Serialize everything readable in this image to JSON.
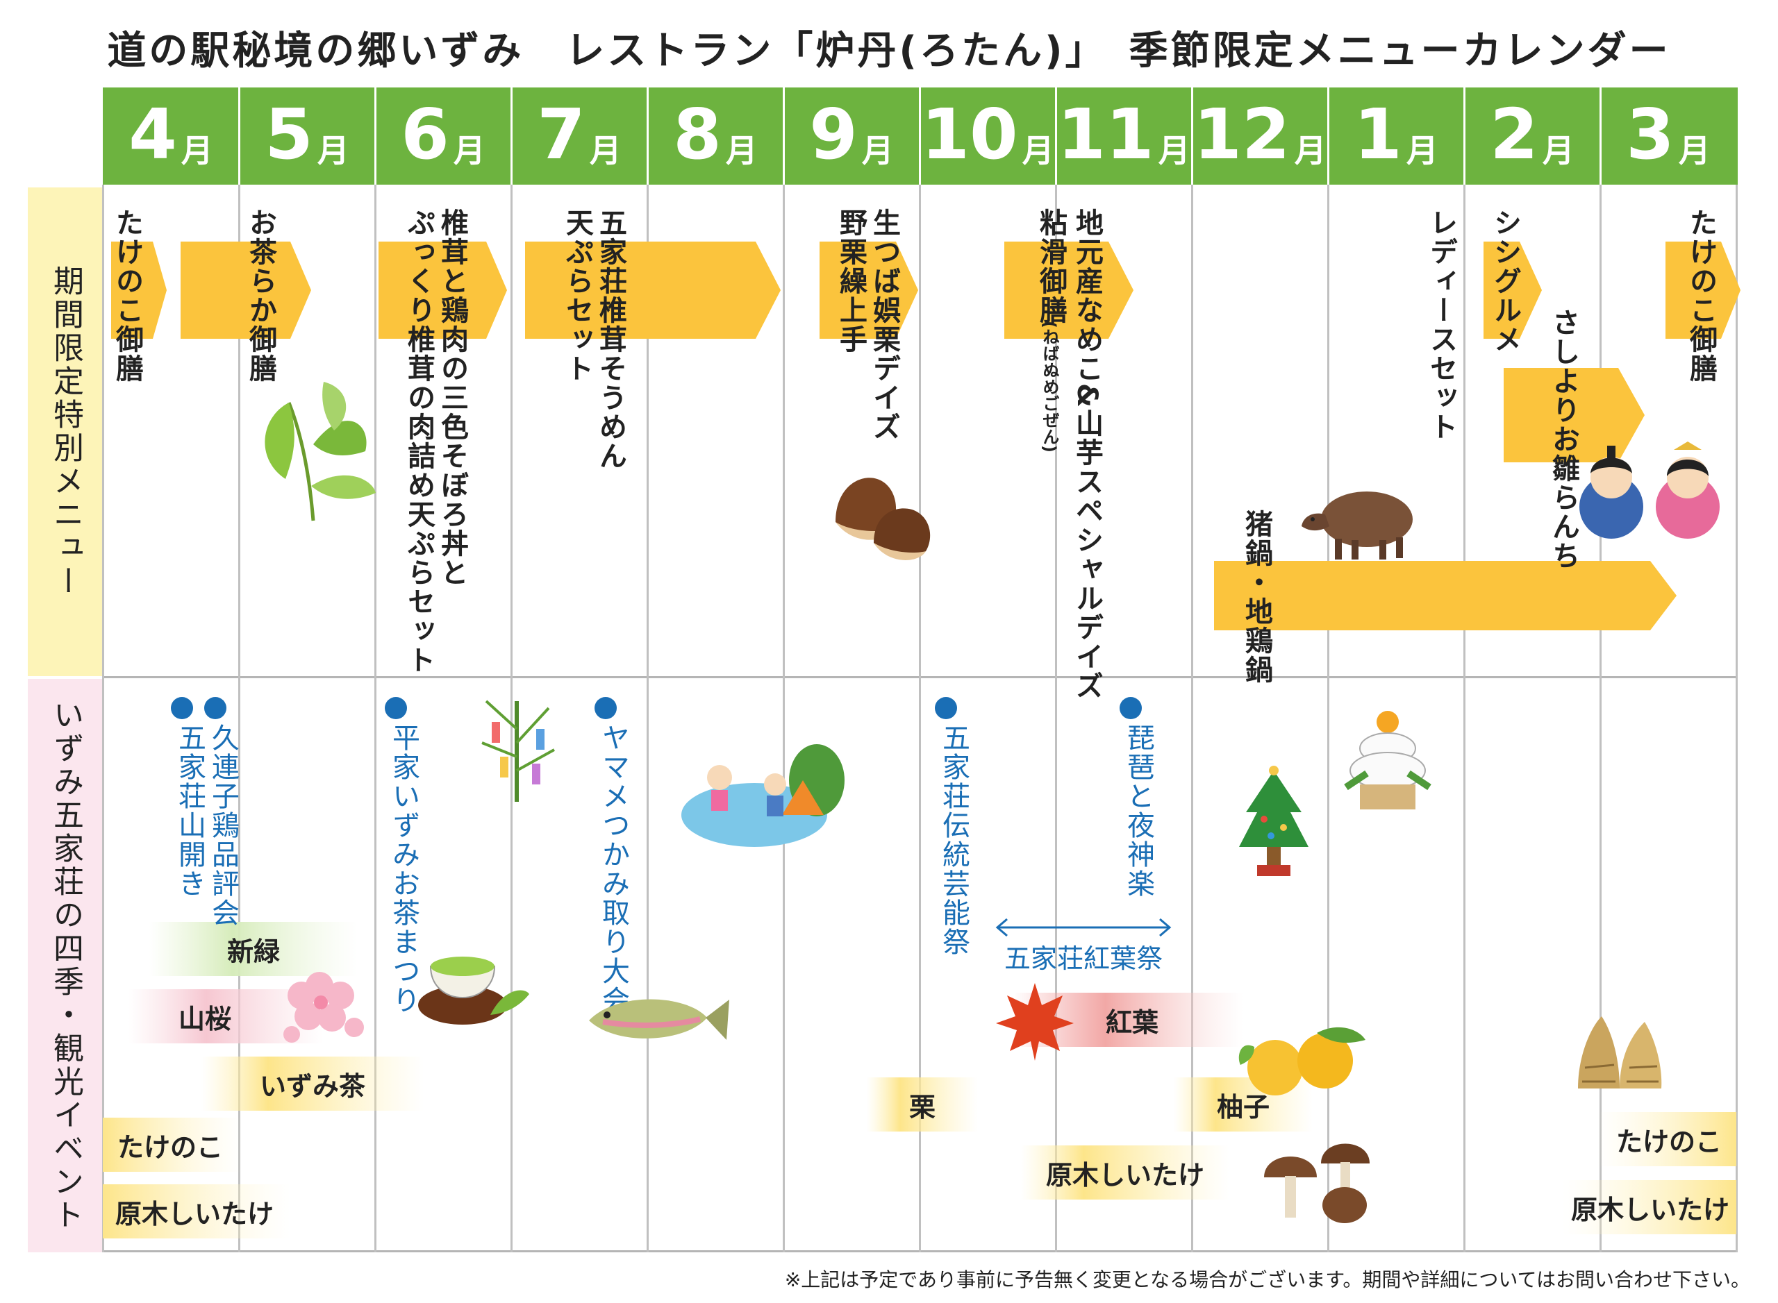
{
  "title": "道の駅秘境の郷いずみ　レストラン「炉丹(ろたん)」　季節限定メニューカレンダー",
  "months": [
    {
      "num": "4",
      "unit": "月"
    },
    {
      "num": "5",
      "unit": "月"
    },
    {
      "num": "6",
      "unit": "月"
    },
    {
      "num": "7",
      "unit": "月"
    },
    {
      "num": "8",
      "unit": "月"
    },
    {
      "num": "9",
      "unit": "月"
    },
    {
      "num": "10",
      "unit": "月"
    },
    {
      "num": "11",
      "unit": "月"
    },
    {
      "num": "12",
      "unit": "月"
    },
    {
      "num": "1",
      "unit": "月"
    },
    {
      "num": "2",
      "unit": "月"
    },
    {
      "num": "3",
      "unit": "月"
    }
  ],
  "sections": {
    "special_menu": "期間限定特別メニュー",
    "events": "いずみ五家荘の四季・観光イベント"
  },
  "menus": {
    "takenoko_apr": "たけのこ御膳",
    "ocharaka": "お茶らか御膳",
    "shiitake_line1": "椎茸と鶏肉の三色そぼろ丼と",
    "shiitake_line2": "ぷっくり椎茸の肉詰め天ぷらセット",
    "gokanoso_line1": "五家荘椎茸そうめん",
    "gokanoso_line2": "天ぷらセット",
    "chestnut_line1": "生つば娯栗デイズ",
    "chestnut_line2": "野栗繰上手",
    "nameko_line1": "地元産なめこ&山芋スペシャルデイズ",
    "nameko_line2": "粘滑御膳",
    "nameko_ruby": "(ねばぬめごぜん)",
    "ladies": "レディースセット",
    "shishi": "シシグルメ",
    "sashiyori": "さしよりお雛らんち",
    "takenoko_mar": "たけのこ御膳",
    "inoshishi": "猪鍋・地鶏鍋"
  },
  "events": {
    "kurenko": "久連子鶏品評会",
    "yamabiraki": "五家荘山開き",
    "heike": "平家いずみお茶まつり",
    "yamame": "ヤマメつかみ取り大会",
    "dento": "五家荘伝統芸能祭",
    "biwa": "琵琶と夜神楽",
    "koyo_fest": "五家荘紅葉祭"
  },
  "seasons": {
    "shinryoku": "新緑",
    "yamazakura": "山桜",
    "izumicha": "いずみ茶",
    "takenoko_spring": "たけのこ",
    "genboku_spring": "原木しいたけ",
    "kuri": "栗",
    "koyo": "紅葉",
    "yuzu": "柚子",
    "genboku_autumn": "原木しいたけ",
    "takenoko_mar": "たけのこ",
    "genboku_mar": "原木しいたけ"
  },
  "colors": {
    "month_bar": "#6db33f",
    "menu_arrow": "#fbc43d",
    "event_blue": "#1a6eb5",
    "special_bg": "#fdf4b8",
    "events_bg": "#fbe6ee"
  },
  "footnote": "※上記は予定であり事前に予告無く変更となる場合がございます。期間や詳細についてはお問い合わせ下さい。"
}
